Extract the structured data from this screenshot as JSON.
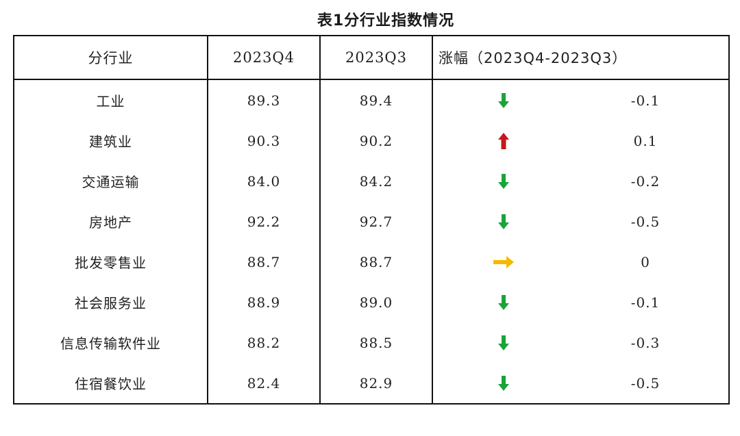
{
  "title": "表1分行业指数情况",
  "headers": {
    "sector": "分行业",
    "q4": "2023Q4",
    "q3": "2023Q3",
    "change": "涨幅（2023Q4-2023Q3）"
  },
  "colors": {
    "down": "#1aa43a",
    "up": "#c8161d",
    "flat": "#f6b800"
  },
  "rows": [
    {
      "sector": "工业",
      "q4": "89.3",
      "q3": "89.4",
      "direction": "down-arrow-icon",
      "change": "-0.1"
    },
    {
      "sector": "建筑业",
      "q4": "90.3",
      "q3": "90.2",
      "direction": "up-arrow-icon",
      "change": "0.1"
    },
    {
      "sector": "交通运输",
      "q4": "84.0",
      "q3": "84.2",
      "direction": "down-arrow-icon",
      "change": "-0.2"
    },
    {
      "sector": "房地产",
      "q4": "92.2",
      "q3": "92.7",
      "direction": "down-arrow-icon",
      "change": "-0.5"
    },
    {
      "sector": "批发零售业",
      "q4": "88.7",
      "q3": "88.7",
      "direction": "right-arrow-icon",
      "change": "0"
    },
    {
      "sector": "社会服务业",
      "q4": "88.9",
      "q3": "89.0",
      "direction": "down-arrow-icon",
      "change": "-0.1"
    },
    {
      "sector": "信息传输软件业",
      "q4": "88.2",
      "q3": "88.5",
      "direction": "down-arrow-icon",
      "change": "-0.3"
    },
    {
      "sector": "住宿餐饮业",
      "q4": "82.4",
      "q3": "82.9",
      "direction": "down-arrow-icon",
      "change": "-0.5"
    }
  ]
}
